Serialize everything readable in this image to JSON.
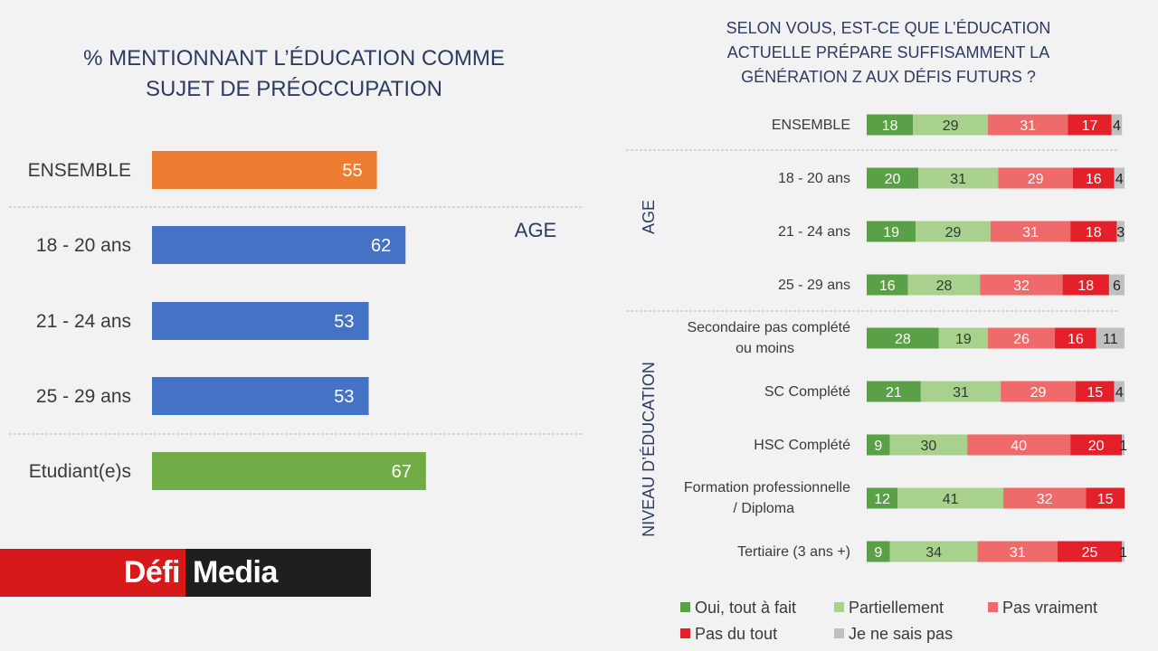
{
  "colors": {
    "background": "#f2f2f2",
    "title_text": "#2e3b63",
    "label_text": "#3a3a3a",
    "ensemble_bar": "#ed7d31",
    "age_bar": "#4472c4",
    "student_bar": "#70ad47",
    "oui": "#5aa046",
    "partiellement": "#a9d18e",
    "pas_vraiment": "#ef6b6b",
    "pas_du_tout": "#e4202b",
    "ne_sais_pas": "#bfbfbf",
    "logo_red": "#d7191c",
    "logo_dark": "#1f1f1f"
  },
  "logo": {
    "part1": "Défi",
    "part2": "Media"
  },
  "chart_data": [
    {
      "type": "bar",
      "orientation": "horizontal",
      "title": "% MENTIONNANT L’ÉDUCATION COMME SUJET DE PRÉOCCUPATION",
      "title_lines": [
        "% MENTIONNANT L’ÉDUCATION COMME",
        "SUJET DE PRÉOCCUPATION"
      ],
      "group_label": "AGE",
      "categories": [
        "ENSEMBLE",
        "18  - 20 ans",
        "21 - 24 ans",
        "25 - 29 ans",
        "Etudiant(e)s"
      ],
      "values": [
        55,
        62,
        53,
        53,
        67
      ],
      "groups": [
        "ensemble",
        "age",
        "age",
        "age",
        "student"
      ],
      "xlim": [
        0,
        100
      ],
      "xlabel": "",
      "ylabel": ""
    },
    {
      "type": "bar",
      "orientation": "horizontal",
      "stacked": true,
      "title": "SELON VOUS, EST-CE QUE L’ÉDUCATION ACTUELLE PRÉPARE SUFFISAMMENT LA GÉNÉRATION Z AUX DÉFIS FUTURS ?",
      "title_lines": [
        "SELON VOUS, EST-CE QUE L’ÉDUCATION",
        "ACTUELLE PRÉPARE SUFFISAMMENT LA",
        "GÉNÉRATION Z AUX DÉFIS FUTURS ?"
      ],
      "group_labels": [
        {
          "label": "AGE",
          "rows": [
            1,
            3
          ]
        },
        {
          "label": "NIVEAU D’ÉDUCATION",
          "rows": [
            4,
            8
          ]
        }
      ],
      "categories": [
        [
          "ENSEMBLE"
        ],
        [
          "18  - 20 ans"
        ],
        [
          "21 - 24 ans"
        ],
        [
          "25 - 29 ans"
        ],
        [
          "Secondaire pas complété",
          "ou moins"
        ],
        [
          "SC Complété"
        ],
        [
          "HSC Complété"
        ],
        [
          "Formation professionnelle",
          "/ Diploma"
        ],
        [
          "Tertiaire (3 ans +)"
        ]
      ],
      "series": [
        {
          "name": "Oui, tout à fait",
          "color_key": "oui",
          "values": [
            18,
            20,
            19,
            16,
            28,
            21,
            9,
            12,
            9
          ]
        },
        {
          "name": "Partiellement",
          "color_key": "partiellement",
          "values": [
            29,
            31,
            29,
            28,
            19,
            31,
            30,
            41,
            34
          ]
        },
        {
          "name": "Pas vraiment",
          "color_key": "pas_vraiment",
          "values": [
            31,
            29,
            31,
            32,
            26,
            29,
            40,
            32,
            31
          ]
        },
        {
          "name": "Pas du tout",
          "color_key": "pas_du_tout",
          "values": [
            17,
            16,
            18,
            18,
            16,
            15,
            20,
            15,
            25
          ]
        },
        {
          "name": "Je ne sais pas",
          "color_key": "ne_sais_pas",
          "values": [
            4,
            4,
            3,
            6,
            11,
            4,
            1,
            null,
            1
          ]
        }
      ],
      "legend_position": "bottom",
      "xlim": [
        0,
        100
      ]
    }
  ]
}
